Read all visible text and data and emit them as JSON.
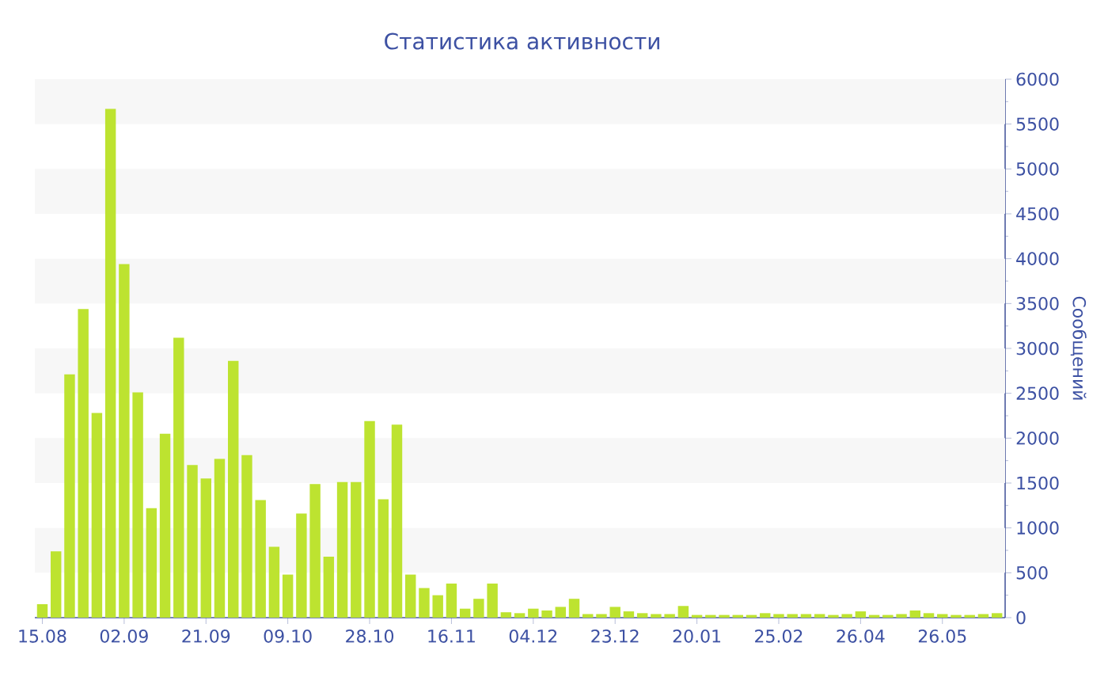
{
  "chart_data": {
    "type": "bar",
    "title": "Статистика активности",
    "ylabel": "Сообщений",
    "categories": [
      "15.08",
      null,
      null,
      null,
      null,
      null,
      "02.09",
      null,
      null,
      null,
      null,
      null,
      "21.09",
      null,
      null,
      null,
      null,
      null,
      "09.10",
      null,
      null,
      null,
      null,
      null,
      "28.10",
      null,
      null,
      null,
      null,
      null,
      "16.11",
      null,
      null,
      null,
      null,
      null,
      "04.12",
      null,
      null,
      null,
      null,
      null,
      "23.12",
      null,
      null,
      null,
      null,
      null,
      "20.01",
      null,
      null,
      null,
      null,
      null,
      "25.02",
      null,
      null,
      null,
      null,
      null,
      "26.04",
      null,
      null,
      null,
      null,
      null,
      "26.05",
      null,
      null,
      null,
      null
    ],
    "values": [
      150,
      740,
      2710,
      3440,
      2280,
      5670,
      3940,
      2510,
      1220,
      2050,
      3120,
      1700,
      1550,
      1770,
      2860,
      1810,
      1310,
      790,
      480,
      1160,
      1490,
      680,
      1510,
      1510,
      2190,
      1320,
      2150,
      480,
      330,
      250,
      380,
      100,
      210,
      380,
      60,
      50,
      100,
      80,
      120,
      210,
      40,
      40,
      120,
      70,
      50,
      40,
      40,
      130,
      30,
      30,
      30,
      30,
      30,
      50,
      40,
      40,
      40,
      40,
      30,
      40,
      70,
      30,
      30,
      40,
      80,
      50,
      40,
      30,
      30,
      40,
      50
    ],
    "color": "#bde330",
    "ylim": [
      0,
      6000
    ],
    "yticks": [
      0,
      500,
      1000,
      1500,
      2000,
      2500,
      3000,
      3500,
      4000,
      4500,
      5000,
      5500,
      6000
    ],
    "bands": [
      {
        "axis": "y",
        "from": 5500,
        "to": 6000,
        "color": "#f7f7f7"
      },
      {
        "axis": "y",
        "from": 4500,
        "to": 5000,
        "color": "#f7f7f7"
      },
      {
        "axis": "y",
        "from": 3500,
        "to": 4000,
        "color": "#f7f7f7"
      },
      {
        "axis": "y",
        "from": 2500,
        "to": 3000,
        "color": "#f7f7f7"
      },
      {
        "axis": "y",
        "from": 1500,
        "to": 2000,
        "color": "#f7f7f7"
      },
      {
        "axis": "y",
        "from": 500,
        "to": 1000,
        "color": "#f7f7f7"
      }
    ]
  }
}
